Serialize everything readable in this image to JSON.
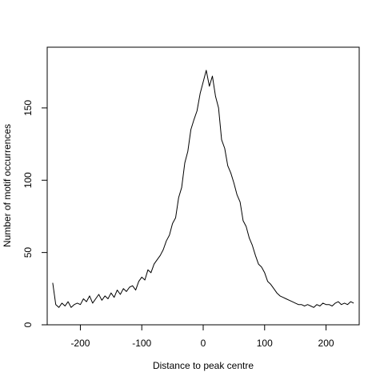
{
  "chart_data": {
    "type": "line",
    "title": "",
    "xlabel": "Distance to peak centre",
    "ylabel": "Number of motif occurrences",
    "xlim": [
      -254,
      254
    ],
    "ylim": [
      0,
      192
    ],
    "xticks": [
      -200,
      -100,
      0,
      100,
      200
    ],
    "xtick_labels": [
      "-200",
      "-100",
      "0",
      "100",
      "200"
    ],
    "yticks": [
      0,
      50,
      100,
      150
    ],
    "ytick_labels": [
      "0",
      "50",
      "100",
      "150"
    ],
    "grid": false,
    "legend": "none",
    "line_color": "#000000",
    "series": [
      {
        "x": [
          -245,
          -240,
          -235,
          -230,
          -225,
          -220,
          -215,
          -210,
          -205,
          -200,
          -195,
          -190,
          -185,
          -180,
          -175,
          -170,
          -165,
          -160,
          -155,
          -150,
          -145,
          -140,
          -135,
          -130,
          -125,
          -120,
          -115,
          -110,
          -105,
          -100,
          -95,
          -90,
          -85,
          -80,
          -75,
          -70,
          -65,
          -60,
          -55,
          -50,
          -45,
          -40,
          -35,
          -30,
          -25,
          -20,
          -15,
          -10,
          -5,
          0,
          5,
          10,
          15,
          20,
          25,
          30,
          35,
          40,
          45,
          50,
          55,
          60,
          65,
          70,
          75,
          80,
          85,
          90,
          95,
          100,
          105,
          110,
          115,
          120,
          125,
          130,
          135,
          140,
          145,
          150,
          155,
          160,
          165,
          170,
          175,
          180,
          185,
          190,
          195,
          200,
          205,
          210,
          215,
          220,
          225,
          230,
          235,
          240,
          245
        ],
        "values": [
          29,
          14,
          12,
          15,
          13,
          16,
          12,
          14,
          15,
          14,
          18,
          16,
          20,
          15,
          18,
          21,
          17,
          20,
          18,
          22,
          19,
          24,
          21,
          25,
          23,
          26,
          27,
          24,
          30,
          33,
          31,
          38,
          36,
          42,
          45,
          48,
          52,
          58,
          62,
          70,
          74,
          88,
          95,
          112,
          120,
          135,
          142,
          148,
          160,
          168,
          176,
          165,
          172,
          158,
          150,
          128,
          122,
          110,
          105,
          98,
          90,
          85,
          72,
          68,
          60,
          55,
          48,
          42,
          40,
          36,
          30,
          28,
          25,
          22,
          20,
          19,
          18,
          17,
          16,
          15,
          14,
          14,
          13,
          14,
          13,
          12,
          14,
          13,
          15,
          14,
          14,
          13,
          15,
          16,
          14,
          15,
          14,
          16,
          15
        ]
      }
    ]
  }
}
